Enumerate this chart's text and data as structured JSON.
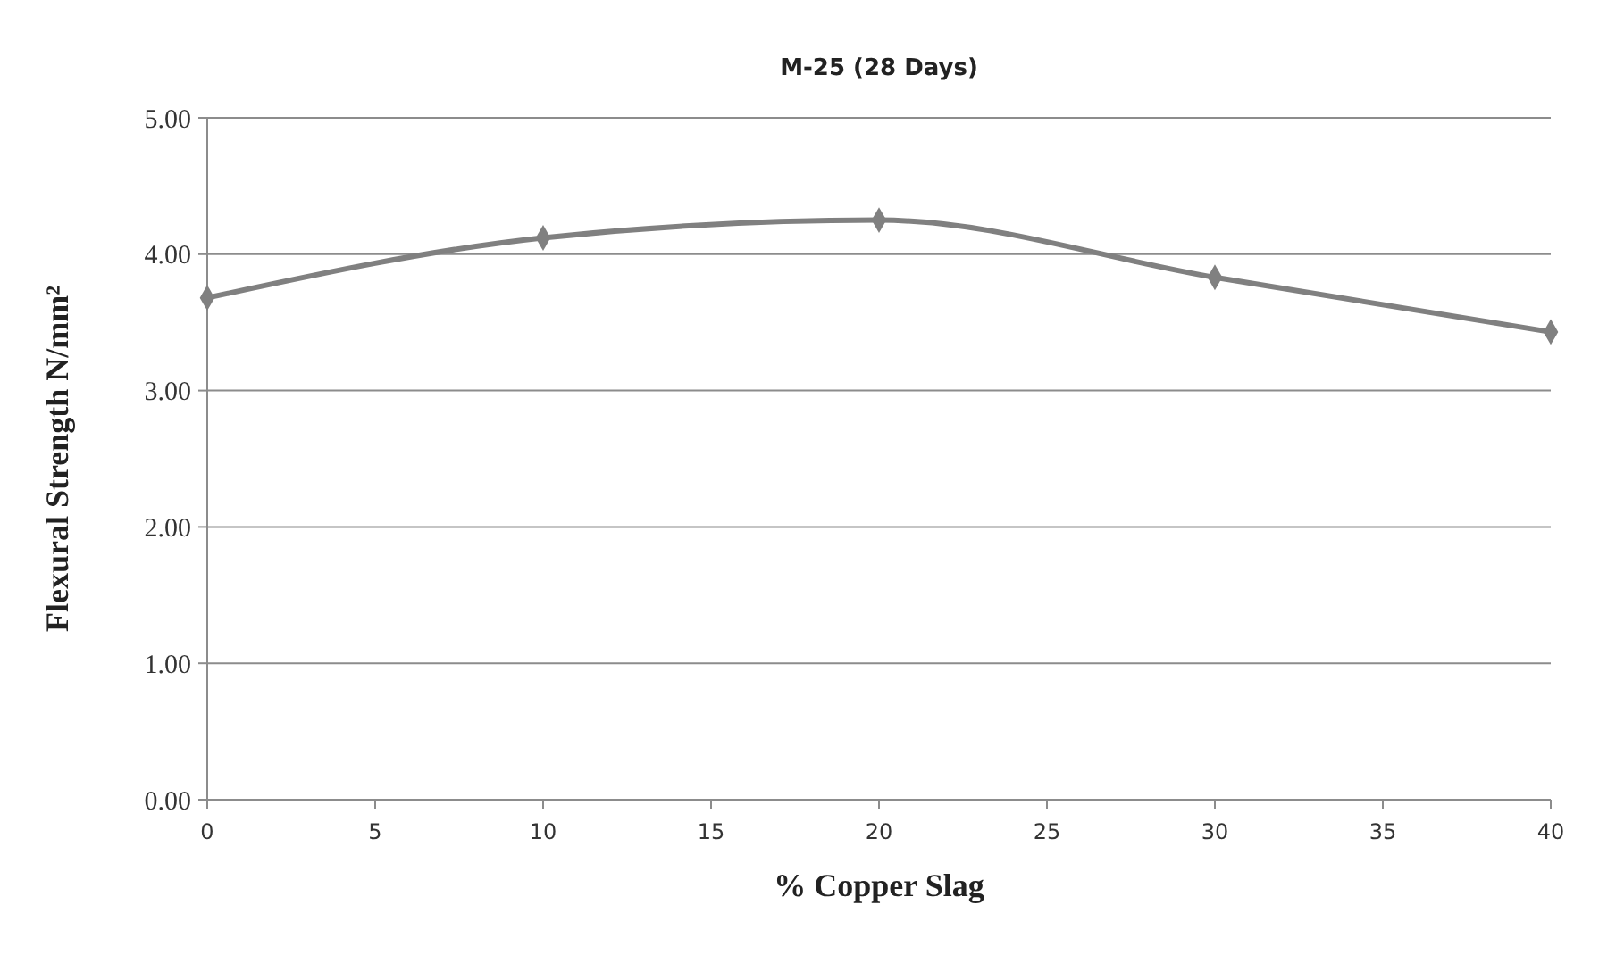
{
  "chart_data": {
    "type": "line",
    "title": "M-25 (28 Days)",
    "xlabel": "% Copper Slag",
    "ylabel": "Flexural Strength N/mm²",
    "x": [
      0,
      10,
      20,
      30,
      40
    ],
    "series": [
      {
        "color": "#808080",
        "values": [
          3.68,
          4.12,
          4.25,
          3.83,
          3.43
        ]
      }
    ],
    "xlim": [
      0,
      40
    ],
    "xticks": [
      0,
      5,
      10,
      15,
      20,
      25,
      30,
      35,
      40
    ],
    "ylim": [
      0,
      5
    ],
    "yticks": [
      {
        "value": 0,
        "label": "0.00"
      },
      {
        "value": 1,
        "label": "1.00"
      },
      {
        "value": 2,
        "label": "2.00"
      },
      {
        "value": 3,
        "label": "3.00"
      },
      {
        "value": 4,
        "label": "4.00"
      },
      {
        "value": 5,
        "label": "5.00"
      }
    ],
    "grid": "y",
    "marker": "diamond",
    "line_style": "solid"
  }
}
